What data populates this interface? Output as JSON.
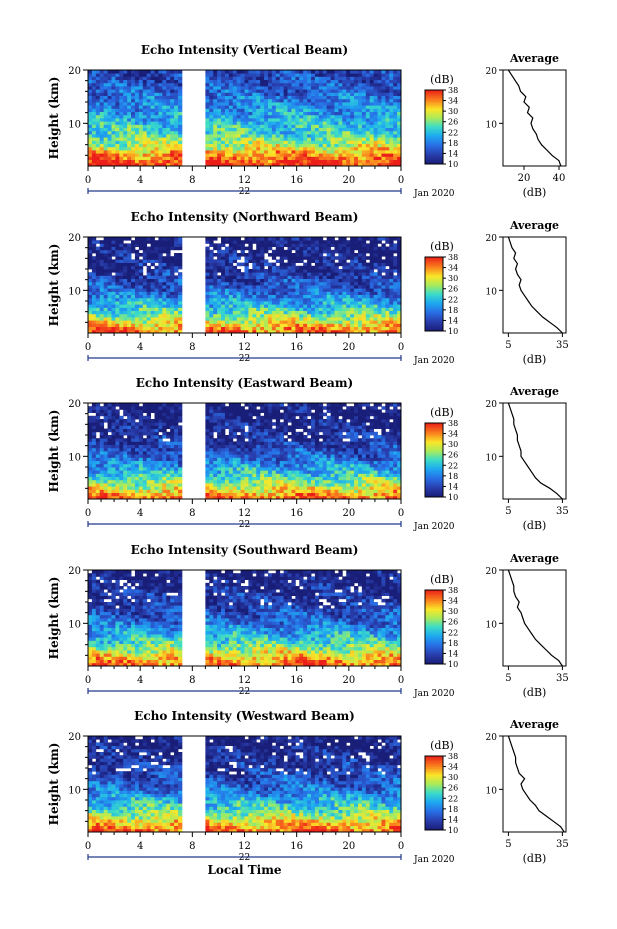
{
  "chart_data": [
    {
      "type": "heatmap",
      "title": "Echo Intensity (Vertical Beam)",
      "ylabel": "Height (km)",
      "x_ticks": [
        "0",
        "4",
        "8",
        "12",
        "16",
        "20",
        "0"
      ],
      "y_ticks": [
        "10",
        "20"
      ],
      "xlim": [
        0,
        24
      ],
      "ylim": [
        2,
        20
      ],
      "date_label": "22",
      "jan_label": "Jan 2020",
      "colorbar_label": "(dB)",
      "colorbar_ticks": [
        "38",
        "34",
        "30",
        "26",
        "22",
        "18",
        "14",
        "10"
      ],
      "clim": [
        10,
        38
      ],
      "data_gap_hours": [
        7.1,
        8.9
      ],
      "height_km": [
        2,
        4,
        6,
        8,
        10,
        12,
        14,
        16,
        18,
        20
      ],
      "intensity_db": [
        38,
        34,
        28,
        24,
        22,
        20,
        18,
        16,
        15,
        13
      ],
      "average_profile": {
        "title": "Average",
        "x_ticks": [
          "20",
          "40"
        ],
        "xlabel": "(dB)",
        "xlim": [
          8,
          44
        ],
        "height_km": [
          2,
          3,
          4,
          5,
          6,
          7,
          8,
          9,
          10,
          11,
          12,
          13,
          14,
          15,
          16,
          17,
          18,
          19,
          20
        ],
        "mean_db": [
          41,
          40,
          36,
          33,
          30,
          28,
          27,
          25,
          24,
          25,
          22,
          23,
          20,
          21,
          18,
          17,
          15,
          13,
          11
        ]
      }
    },
    {
      "type": "heatmap",
      "title": "Echo Intensity (Northward Beam)",
      "ylabel": "Height (km)",
      "x_ticks": [
        "0",
        "4",
        "8",
        "12",
        "16",
        "20",
        "0"
      ],
      "y_ticks": [
        "10",
        "20"
      ],
      "xlim": [
        0,
        24
      ],
      "ylim": [
        2,
        20
      ],
      "date_label": "22",
      "jan_label": "Jan 2020",
      "colorbar_label": "(dB)",
      "colorbar_ticks": [
        "38",
        "34",
        "30",
        "26",
        "22",
        "18",
        "14",
        "10"
      ],
      "clim": [
        10,
        38
      ],
      "data_gap_hours": [
        7.1,
        8.9
      ],
      "height_km": [
        2,
        4,
        6,
        8,
        10,
        12,
        14,
        16,
        18,
        20
      ],
      "intensity_db": [
        36,
        30,
        24,
        20,
        16,
        14,
        12,
        11,
        10,
        10
      ],
      "average_profile": {
        "title": "Average",
        "x_ticks": [
          "5",
          "35"
        ],
        "xlabel": "(dB)",
        "xlim": [
          2,
          37
        ],
        "height_km": [
          2,
          3,
          4,
          5,
          6,
          7,
          8,
          9,
          10,
          11,
          12,
          13,
          14,
          15,
          16,
          17,
          18,
          19,
          20
        ],
        "mean_db": [
          35,
          32,
          28,
          24,
          21,
          18,
          16,
          14,
          12,
          11,
          12,
          10,
          9,
          10,
          8,
          9,
          7,
          6,
          5
        ]
      }
    },
    {
      "type": "heatmap",
      "title": "Echo Intensity (Eastward Beam)",
      "ylabel": "Height (km)",
      "x_ticks": [
        "0",
        "4",
        "8",
        "12",
        "16",
        "20",
        "0"
      ],
      "y_ticks": [
        "10",
        "20"
      ],
      "xlim": [
        0,
        24
      ],
      "ylim": [
        2,
        20
      ],
      "date_label": "22",
      "jan_label": "Jan 2020",
      "colorbar_label": "(dB)",
      "colorbar_ticks": [
        "38",
        "34",
        "30",
        "26",
        "22",
        "18",
        "14",
        "10"
      ],
      "clim": [
        10,
        38
      ],
      "data_gap_hours": [
        7.1,
        8.9
      ],
      "height_km": [
        2,
        4,
        6,
        8,
        10,
        12,
        14,
        16,
        18,
        20
      ],
      "intensity_db": [
        36,
        30,
        24,
        20,
        16,
        14,
        12,
        11,
        10,
        10
      ],
      "average_profile": {
        "title": "Average",
        "x_ticks": [
          "5",
          "35"
        ],
        "xlabel": "(dB)",
        "xlim": [
          2,
          37
        ],
        "height_km": [
          2,
          3,
          4,
          5,
          6,
          7,
          8,
          9,
          10,
          11,
          12,
          13,
          14,
          15,
          16,
          17,
          18,
          19,
          20
        ],
        "mean_db": [
          35,
          32,
          28,
          23,
          20,
          18,
          16,
          14,
          12,
          12,
          11,
          10,
          10,
          9,
          8,
          8,
          7,
          6,
          5
        ]
      }
    },
    {
      "type": "heatmap",
      "title": "Echo Intensity (Southward Beam)",
      "ylabel": "Height (km)",
      "x_ticks": [
        "0",
        "4",
        "8",
        "12",
        "16",
        "20",
        "0"
      ],
      "y_ticks": [
        "10",
        "20"
      ],
      "xlim": [
        0,
        24
      ],
      "ylim": [
        2,
        20
      ],
      "date_label": "22",
      "jan_label": "Jan 2020",
      "colorbar_label": "(dB)",
      "colorbar_ticks": [
        "38",
        "34",
        "30",
        "26",
        "22",
        "18",
        "14",
        "10"
      ],
      "clim": [
        10,
        38
      ],
      "data_gap_hours": [
        7.1,
        8.9
      ],
      "height_km": [
        2,
        4,
        6,
        8,
        10,
        12,
        14,
        16,
        18,
        20
      ],
      "intensity_db": [
        36,
        31,
        25,
        21,
        17,
        15,
        13,
        12,
        11,
        10
      ],
      "average_profile": {
        "title": "Average",
        "x_ticks": [
          "5",
          "35"
        ],
        "xlabel": "(dB)",
        "xlim": [
          2,
          37
        ],
        "height_km": [
          2,
          3,
          4,
          5,
          6,
          7,
          8,
          9,
          10,
          11,
          12,
          13,
          14,
          15,
          16,
          17,
          18,
          19,
          20
        ],
        "mean_db": [
          35,
          33,
          29,
          26,
          23,
          20,
          18,
          16,
          14,
          13,
          12,
          10,
          11,
          9,
          8,
          8,
          7,
          6,
          5
        ]
      }
    },
    {
      "type": "heatmap",
      "title": "Echo Intensity (Westward Beam)",
      "ylabel": "Height (km)",
      "xlabel": "Local Time",
      "x_ticks": [
        "0",
        "4",
        "8",
        "12",
        "16",
        "20",
        "0"
      ],
      "y_ticks": [
        "10",
        "20"
      ],
      "xlim": [
        0,
        24
      ],
      "ylim": [
        2,
        20
      ],
      "date_label": "22",
      "jan_label": "Jan 2020",
      "colorbar_label": "(dB)",
      "colorbar_ticks": [
        "38",
        "34",
        "30",
        "26",
        "22",
        "18",
        "14",
        "10"
      ],
      "clim": [
        10,
        38
      ],
      "data_gap_hours": [
        7.1,
        8.9
      ],
      "height_km": [
        2,
        4,
        6,
        8,
        10,
        12,
        14,
        16,
        18,
        20
      ],
      "intensity_db": [
        36,
        31,
        25,
        21,
        17,
        15,
        13,
        12,
        11,
        10
      ],
      "average_profile": {
        "title": "Average",
        "x_ticks": [
          "5",
          "35"
        ],
        "xlabel": "(dB)",
        "xlim": [
          2,
          37
        ],
        "height_km": [
          2,
          3,
          4,
          5,
          6,
          7,
          8,
          9,
          10,
          11,
          12,
          13,
          14,
          15,
          16,
          17,
          18,
          19,
          20
        ],
        "mean_db": [
          36,
          34,
          30,
          26,
          22,
          20,
          17,
          15,
          13,
          12,
          14,
          11,
          10,
          9,
          9,
          8,
          7,
          6,
          5
        ]
      }
    }
  ]
}
